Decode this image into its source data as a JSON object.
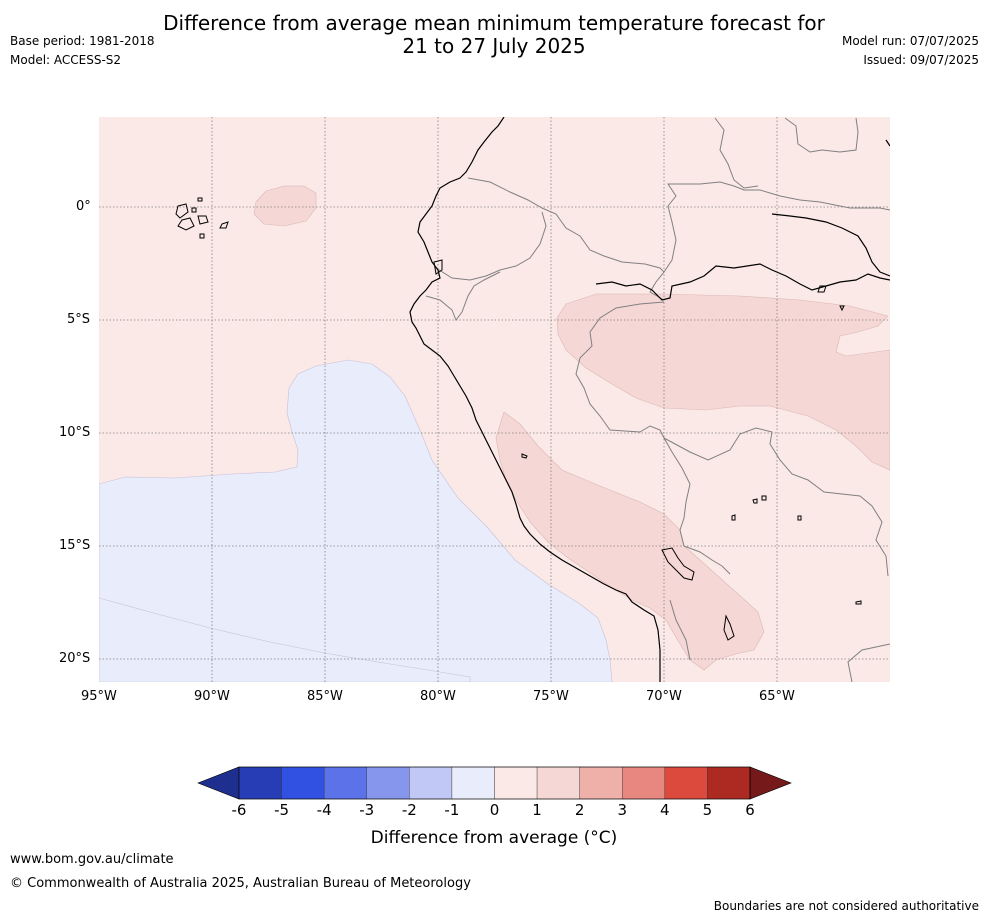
{
  "header": {
    "title_line1": "Difference from average mean minimum temperature forecast for",
    "title_line2": "21 to 27 July 2025",
    "base_period": "Base period: 1981-2018",
    "model": "Model: ACCESS-S2",
    "model_run": "Model run: 07/07/2025",
    "issued": "Issued: 09/07/2025"
  },
  "map": {
    "lat_labels": [
      "0°",
      "5°S",
      "10°S",
      "15°S",
      "20°S"
    ],
    "lon_labels": [
      "95°W",
      "90°W",
      "85°W",
      "80°W",
      "75°W",
      "70°W",
      "65°W"
    ],
    "colors": {
      "class_0_to_1": "#fbe9e7",
      "class_1_to_2": "#f5d7d5",
      "class_m1_to_0": "#e8ecfb",
      "coastline": "#000000",
      "borders": "#808080",
      "gridlines": "#808080"
    }
  },
  "colorbar": {
    "ticks": [
      "-6",
      "-5",
      "-4",
      "-3",
      "-2",
      "-1",
      "0",
      "1",
      "2",
      "3",
      "4",
      "5",
      "6"
    ],
    "colors": [
      "#1f2f8f",
      "#263db5",
      "#3151e3",
      "#5b72e8",
      "#8596ec",
      "#c2c8f5",
      "#e8ecfb",
      "#fbe9e7",
      "#f5d7d5",
      "#efb0aa",
      "#e8877f",
      "#dc4a3e",
      "#ad2a22",
      "#75191a"
    ],
    "label": "Difference from average (°C)"
  },
  "footer": {
    "url": "www.bom.gov.au/climate",
    "copyright": "© Commonwealth of Australia 2025, Australian Bureau of Meteorology",
    "note": "Boundaries are not considered authoritative"
  }
}
